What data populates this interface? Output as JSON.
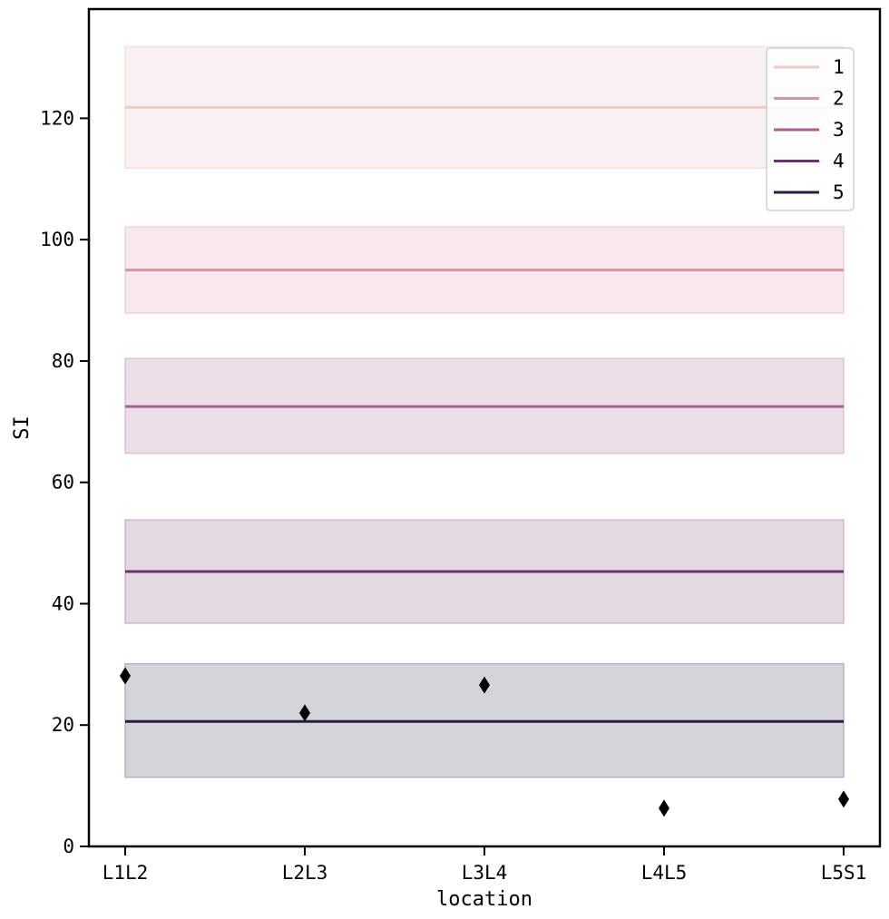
{
  "chart_data": {
    "type": "line",
    "title": "",
    "xlabel": "location",
    "ylabel": "SI",
    "categories": [
      "L1L2",
      "L2L3",
      "L3L4",
      "L4L5",
      "L5S1"
    ],
    "ylim": [
      0,
      138
    ],
    "yticks": [
      0,
      20,
      40,
      60,
      80,
      100,
      120
    ],
    "grid": false,
    "legend_position": "top-right",
    "series": [
      {
        "name": "1",
        "color": "#efcac6",
        "band_color": "#f9f2f1",
        "band_edge": "#f2e2e0",
        "values": [
          121.8,
          121.8,
          121.8,
          121.8,
          121.8
        ],
        "band": [
          111.8,
          131.8
        ]
      },
      {
        "name": "2",
        "color": "#d595a2",
        "band_color": "#f6e8eb",
        "band_edge": "#eed3d9",
        "values": [
          95.0,
          95.0,
          95.0,
          95.0,
          95.0
        ],
        "band": [
          87.9,
          102.1
        ]
      },
      {
        "name": "3",
        "color": "#a7618e",
        "band_color": "#eddfe8",
        "band_edge": "#dcc4d4",
        "values": [
          72.5,
          72.5,
          72.5,
          72.5,
          72.5
        ],
        "band": [
          64.8,
          80.4
        ]
      },
      {
        "name": "4",
        "color": "#6a3468",
        "band_color": "#e4d8e3",
        "band_edge": "#cbb8ca",
        "values": [
          45.3,
          45.3,
          45.3,
          45.3,
          45.3
        ],
        "band": [
          36.8,
          53.8
        ]
      },
      {
        "name": "5",
        "color": "#2d1e3e",
        "band_color": "#d6d4db",
        "band_edge": "#b8b4bf",
        "values": [
          20.6,
          20.6,
          20.6,
          20.6,
          20.6
        ],
        "band": [
          11.4,
          30.1
        ]
      }
    ],
    "markers": {
      "shape": "diamond",
      "color": "#000000",
      "values": [
        28.1,
        22.0,
        26.6,
        6.3,
        7.8
      ]
    }
  }
}
